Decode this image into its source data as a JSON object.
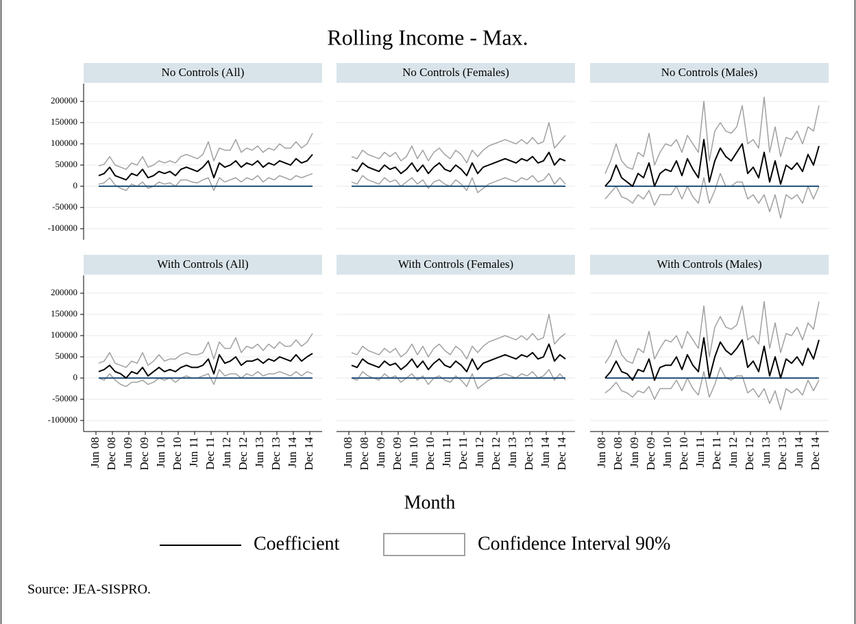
{
  "title": "Rolling Income - Max.",
  "x_label": "Month",
  "note": "Source: JEA-SISPRO.",
  "legend": [
    {
      "name": "Coefficient",
      "color": "#000000"
    },
    {
      "name": "Confidence Interval 90%",
      "color": "#a0a0a0"
    }
  ],
  "reference_line": {
    "value": 0,
    "color": "#1f4e79"
  },
  "chart_data": [
    {
      "type": "line",
      "title": "No Controls (All)",
      "x": [
        1,
        3,
        5,
        7,
        9,
        11,
        13,
        15,
        17,
        19,
        21,
        23,
        25,
        27,
        29,
        31,
        33,
        35,
        37,
        39,
        41,
        43,
        45,
        47,
        49,
        51,
        53,
        55,
        57,
        59,
        61,
        63,
        65,
        67,
        69,
        71,
        73,
        75,
        77,
        79
      ],
      "coefficient": [
        25000,
        30000,
        45000,
        25000,
        20000,
        15000,
        30000,
        25000,
        40000,
        20000,
        25000,
        35000,
        30000,
        35000,
        25000,
        40000,
        45000,
        40000,
        35000,
        45000,
        60000,
        20000,
        55000,
        45000,
        50000,
        60000,
        45000,
        55000,
        50000,
        60000,
        45000,
        55000,
        50000,
        60000,
        55000,
        50000,
        65000,
        55000,
        60000,
        75000
      ],
      "ci_upper": [
        48000,
        52000,
        70000,
        50000,
        45000,
        40000,
        55000,
        50000,
        70000,
        45000,
        50000,
        60000,
        55000,
        60000,
        55000,
        70000,
        75000,
        70000,
        65000,
        75000,
        105000,
        60000,
        90000,
        85000,
        85000,
        110000,
        80000,
        90000,
        85000,
        95000,
        80000,
        90000,
        85000,
        100000,
        90000,
        90000,
        105000,
        90000,
        100000,
        125000
      ],
      "ci_lower": [
        5000,
        8000,
        20000,
        3000,
        -5000,
        -10000,
        5000,
        0,
        10000,
        -5000,
        0,
        10000,
        5000,
        8000,
        0,
        15000,
        15000,
        10000,
        8000,
        15000,
        20000,
        -10000,
        20000,
        10000,
        15000,
        20000,
        10000,
        20000,
        15000,
        25000,
        10000,
        20000,
        15000,
        25000,
        20000,
        15000,
        25000,
        20000,
        25000,
        30000
      ],
      "xlim": [
        -4.5,
        82.5
      ],
      "ylim": [
        -126000,
        242000
      ],
      "yticks": [
        -100000,
        -50000,
        0,
        50000,
        100000,
        150000,
        200000
      ]
    },
    {
      "type": "line",
      "title": "No Controls (Females)",
      "x": [
        1,
        3,
        5,
        7,
        9,
        11,
        13,
        15,
        17,
        19,
        21,
        23,
        25,
        27,
        29,
        31,
        33,
        35,
        37,
        39,
        41,
        43,
        45,
        47,
        49,
        51,
        53,
        55,
        57,
        59,
        61,
        63,
        65,
        67,
        69,
        71,
        73,
        75,
        77,
        79
      ],
      "coefficient": [
        40000,
        35000,
        55000,
        45000,
        40000,
        35000,
        50000,
        40000,
        45000,
        30000,
        40000,
        55000,
        35000,
        50000,
        30000,
        45000,
        55000,
        40000,
        35000,
        50000,
        40000,
        25000,
        55000,
        30000,
        45000,
        50000,
        55000,
        60000,
        65000,
        60000,
        55000,
        65000,
        60000,
        70000,
        55000,
        60000,
        80000,
        50000,
        65000,
        60000
      ],
      "ci_upper": [
        70000,
        65000,
        85000,
        75000,
        70000,
        65000,
        80000,
        70000,
        80000,
        60000,
        70000,
        95000,
        65000,
        85000,
        60000,
        80000,
        90000,
        75000,
        65000,
        85000,
        75000,
        55000,
        85000,
        70000,
        85000,
        95000,
        100000,
        105000,
        110000,
        105000,
        100000,
        110000,
        100000,
        115000,
        100000,
        105000,
        150000,
        90000,
        105000,
        120000
      ],
      "ci_lower": [
        10000,
        5000,
        25000,
        15000,
        10000,
        5000,
        20000,
        10000,
        15000,
        0,
        10000,
        20000,
        5000,
        15000,
        -5000,
        10000,
        15000,
        5000,
        0,
        15000,
        5000,
        -10000,
        20000,
        -15000,
        -5000,
        5000,
        10000,
        15000,
        20000,
        15000,
        10000,
        20000,
        15000,
        25000,
        10000,
        15000,
        30000,
        5000,
        20000,
        5000
      ],
      "xlim": [
        -4.5,
        82.5
      ],
      "ylim": [
        -126000,
        242000
      ],
      "yticks": [
        -100000,
        -50000,
        0,
        50000,
        100000,
        150000,
        200000
      ]
    },
    {
      "type": "line",
      "title": "No Controls (Males)",
      "x": [
        1,
        3,
        5,
        7,
        9,
        11,
        13,
        15,
        17,
        19,
        21,
        23,
        25,
        27,
        29,
        31,
        33,
        35,
        37,
        39,
        41,
        43,
        45,
        47,
        49,
        51,
        53,
        55,
        57,
        59,
        61,
        63,
        65,
        67,
        69,
        71,
        73,
        75,
        77,
        79
      ],
      "coefficient": [
        0,
        15000,
        50000,
        20000,
        10000,
        0,
        30000,
        20000,
        55000,
        0,
        30000,
        40000,
        35000,
        60000,
        25000,
        65000,
        40000,
        20000,
        110000,
        10000,
        60000,
        90000,
        70000,
        60000,
        80000,
        100000,
        30000,
        45000,
        20000,
        80000,
        10000,
        60000,
        5000,
        50000,
        40000,
        55000,
        35000,
        75000,
        50000,
        95000
      ],
      "ci_upper": [
        30000,
        60000,
        100000,
        60000,
        45000,
        40000,
        80000,
        70000,
        125000,
        50000,
        80000,
        100000,
        95000,
        110000,
        80000,
        120000,
        100000,
        80000,
        200000,
        60000,
        130000,
        150000,
        130000,
        125000,
        140000,
        190000,
        100000,
        110000,
        90000,
        210000,
        80000,
        140000,
        70000,
        115000,
        110000,
        130000,
        100000,
        140000,
        130000,
        190000
      ],
      "ci_lower": [
        -30000,
        -15000,
        0,
        -25000,
        -30000,
        -40000,
        -20000,
        -30000,
        -10000,
        -45000,
        -20000,
        -20000,
        -20000,
        0,
        -30000,
        0,
        -25000,
        -40000,
        20000,
        -40000,
        -10000,
        30000,
        0,
        0,
        10000,
        10000,
        -30000,
        -20000,
        -40000,
        -20000,
        -60000,
        -20000,
        -75000,
        -20000,
        -30000,
        -20000,
        -40000,
        0,
        -30000,
        0
      ],
      "xlim": [
        -4.5,
        82.5
      ],
      "ylim": [
        -126000,
        242000
      ],
      "yticks": [
        -100000,
        -50000,
        0,
        50000,
        100000,
        150000,
        200000
      ]
    },
    {
      "type": "line",
      "title": "With Controls (All)",
      "x": [
        1,
        3,
        5,
        7,
        9,
        11,
        13,
        15,
        17,
        19,
        21,
        23,
        25,
        27,
        29,
        31,
        33,
        35,
        37,
        39,
        41,
        43,
        45,
        47,
        49,
        51,
        53,
        55,
        57,
        59,
        61,
        63,
        65,
        67,
        69,
        71,
        73,
        75,
        77,
        79
      ],
      "coefficient": [
        15000,
        20000,
        30000,
        15000,
        10000,
        0,
        15000,
        10000,
        25000,
        5000,
        15000,
        25000,
        15000,
        20000,
        15000,
        25000,
        30000,
        25000,
        25000,
        30000,
        45000,
        10000,
        55000,
        35000,
        40000,
        50000,
        30000,
        40000,
        40000,
        45000,
        35000,
        45000,
        40000,
        50000,
        45000,
        40000,
        55000,
        40000,
        50000,
        58000
      ],
      "ci_upper": [
        35000,
        40000,
        60000,
        35000,
        30000,
        25000,
        40000,
        35000,
        60000,
        30000,
        40000,
        55000,
        40000,
        45000,
        45000,
        55000,
        60000,
        55000,
        55000,
        60000,
        85000,
        45000,
        85000,
        70000,
        70000,
        95000,
        60000,
        75000,
        70000,
        80000,
        65000,
        80000,
        70000,
        85000,
        75000,
        75000,
        90000,
        75000,
        85000,
        105000
      ],
      "ci_lower": [
        0,
        -5000,
        10000,
        -5000,
        -15000,
        -20000,
        -10000,
        -10000,
        -5000,
        -15000,
        -10000,
        0,
        -5000,
        0,
        -10000,
        0,
        5000,
        0,
        0,
        5000,
        10000,
        -15000,
        20000,
        5000,
        10000,
        10000,
        0,
        10000,
        5000,
        15000,
        5000,
        10000,
        10000,
        15000,
        10000,
        5000,
        15000,
        5000,
        15000,
        10000
      ],
      "xlim": [
        -4.5,
        82.5
      ],
      "ylim": [
        -126000,
        242000
      ],
      "yticks": [
        -100000,
        -50000,
        0,
        50000,
        100000,
        150000,
        200000
      ],
      "xticks": [
        {
          "value": 0,
          "label": "Jun 08"
        },
        {
          "value": 6,
          "label": "Dec 08"
        },
        {
          "value": 12,
          "label": "Jun 09"
        },
        {
          "value": 18,
          "label": "Dec 09"
        },
        {
          "value": 24,
          "label": "Jun 10"
        },
        {
          "value": 30,
          "label": "Dec 10"
        },
        {
          "value": 36,
          "label": "Jun 11"
        },
        {
          "value": 42,
          "label": "Dec 11"
        },
        {
          "value": 48,
          "label": "Jun 12"
        },
        {
          "value": 54,
          "label": "Dec 12"
        },
        {
          "value": 60,
          "label": "Jun 13"
        },
        {
          "value": 66,
          "label": "Dec 13"
        },
        {
          "value": 72,
          "label": "Jun 14"
        },
        {
          "value": 78,
          "label": "Dec 14"
        }
      ]
    },
    {
      "type": "line",
      "title": "With Controls (Females)",
      "x": [
        1,
        3,
        5,
        7,
        9,
        11,
        13,
        15,
        17,
        19,
        21,
        23,
        25,
        27,
        29,
        31,
        33,
        35,
        37,
        39,
        41,
        43,
        45,
        47,
        49,
        51,
        53,
        55,
        57,
        59,
        61,
        63,
        65,
        67,
        69,
        71,
        73,
        75,
        77,
        79
      ],
      "coefficient": [
        30000,
        25000,
        45000,
        35000,
        30000,
        25000,
        40000,
        30000,
        35000,
        20000,
        30000,
        45000,
        25000,
        40000,
        20000,
        35000,
        45000,
        30000,
        25000,
        40000,
        30000,
        15000,
        45000,
        20000,
        35000,
        40000,
        45000,
        50000,
        55000,
        50000,
        45000,
        55000,
        50000,
        60000,
        45000,
        50000,
        80000,
        40000,
        55000,
        45000
      ],
      "ci_upper": [
        60000,
        55000,
        75000,
        65000,
        60000,
        55000,
        70000,
        60000,
        70000,
        50000,
        60000,
        80000,
        55000,
        75000,
        50000,
        70000,
        80000,
        65000,
        55000,
        75000,
        65000,
        45000,
        75000,
        60000,
        75000,
        85000,
        90000,
        95000,
        100000,
        95000,
        90000,
        100000,
        90000,
        105000,
        90000,
        95000,
        150000,
        80000,
        95000,
        105000
      ],
      "ci_lower": [
        0,
        -5000,
        15000,
        5000,
        0,
        -5000,
        10000,
        0,
        5000,
        -10000,
        0,
        10000,
        -5000,
        5000,
        -15000,
        0,
        5000,
        -5000,
        -10000,
        5000,
        -5000,
        -20000,
        10000,
        -25000,
        -15000,
        -5000,
        0,
        5000,
        10000,
        5000,
        0,
        10000,
        5000,
        15000,
        0,
        5000,
        20000,
        -5000,
        10000,
        -5000
      ],
      "xlim": [
        -4.5,
        82.5
      ],
      "ylim": [
        -126000,
        242000
      ],
      "yticks": [
        -100000,
        -50000,
        0,
        50000,
        100000,
        150000,
        200000
      ],
      "xticks": [
        {
          "value": 0,
          "label": "Jun 08"
        },
        {
          "value": 6,
          "label": "Dec 08"
        },
        {
          "value": 12,
          "label": "Jun 09"
        },
        {
          "value": 18,
          "label": "Dec 09"
        },
        {
          "value": 24,
          "label": "Jun 10"
        },
        {
          "value": 30,
          "label": "Dec 10"
        },
        {
          "value": 36,
          "label": "Jun 11"
        },
        {
          "value": 42,
          "label": "Dec 11"
        },
        {
          "value": 48,
          "label": "Jun 12"
        },
        {
          "value": 54,
          "label": "Dec 12"
        },
        {
          "value": 60,
          "label": "Jun 13"
        },
        {
          "value": 66,
          "label": "Dec 13"
        },
        {
          "value": 72,
          "label": "Jun 14"
        },
        {
          "value": 78,
          "label": "Dec 14"
        }
      ]
    },
    {
      "type": "line",
      "title": "With Controls (Males)",
      "x": [
        1,
        3,
        5,
        7,
        9,
        11,
        13,
        15,
        17,
        19,
        21,
        23,
        25,
        27,
        29,
        31,
        33,
        35,
        37,
        39,
        41,
        43,
        45,
        47,
        49,
        51,
        53,
        55,
        57,
        59,
        61,
        63,
        65,
        67,
        69,
        71,
        73,
        75,
        77,
        79
      ],
      "coefficient": [
        0,
        15000,
        40000,
        15000,
        10000,
        -5000,
        20000,
        15000,
        45000,
        -5000,
        25000,
        30000,
        30000,
        50000,
        20000,
        55000,
        30000,
        15000,
        95000,
        0,
        50000,
        85000,
        65000,
        55000,
        70000,
        90000,
        25000,
        40000,
        15000,
        75000,
        5000,
        50000,
        0,
        45000,
        35000,
        50000,
        30000,
        70000,
        45000,
        90000
      ],
      "ci_upper": [
        35000,
        55000,
        90000,
        55000,
        40000,
        35000,
        70000,
        60000,
        110000,
        45000,
        70000,
        90000,
        85000,
        100000,
        70000,
        110000,
        90000,
        70000,
        170000,
        50000,
        120000,
        145000,
        120000,
        115000,
        125000,
        170000,
        90000,
        100000,
        80000,
        180000,
        70000,
        130000,
        60000,
        105000,
        100000,
        120000,
        90000,
        130000,
        115000,
        180000
      ],
      "ci_lower": [
        -35000,
        -25000,
        -10000,
        -30000,
        -35000,
        -45000,
        -30000,
        -35000,
        -20000,
        -50000,
        -25000,
        -25000,
        -25000,
        -5000,
        -30000,
        0,
        -25000,
        -40000,
        15000,
        -45000,
        -15000,
        25000,
        0,
        -5000,
        5000,
        5000,
        -35000,
        -25000,
        -45000,
        -25000,
        -60000,
        -30000,
        -75000,
        -25000,
        -35000,
        -25000,
        -40000,
        -5000,
        -30000,
        -5000
      ],
      "xlim": [
        -4.5,
        82.5
      ],
      "ylim": [
        -126000,
        242000
      ],
      "yticks": [
        -100000,
        -50000,
        0,
        50000,
        100000,
        150000,
        200000
      ],
      "xticks": [
        {
          "value": 0,
          "label": "Jun 08"
        },
        {
          "value": 6,
          "label": "Dec 08"
        },
        {
          "value": 12,
          "label": "Jun 09"
        },
        {
          "value": 18,
          "label": "Dec 09"
        },
        {
          "value": 24,
          "label": "Jun 10"
        },
        {
          "value": 30,
          "label": "Dec 10"
        },
        {
          "value": 36,
          "label": "Jun 11"
        },
        {
          "value": 42,
          "label": "Dec 11"
        },
        {
          "value": 48,
          "label": "Jun 12"
        },
        {
          "value": 54,
          "label": "Dec 12"
        },
        {
          "value": 60,
          "label": "Jun 13"
        },
        {
          "value": 66,
          "label": "Dec 13"
        },
        {
          "value": 72,
          "label": "Jun 14"
        },
        {
          "value": 78,
          "label": "Dec 14"
        }
      ]
    }
  ]
}
